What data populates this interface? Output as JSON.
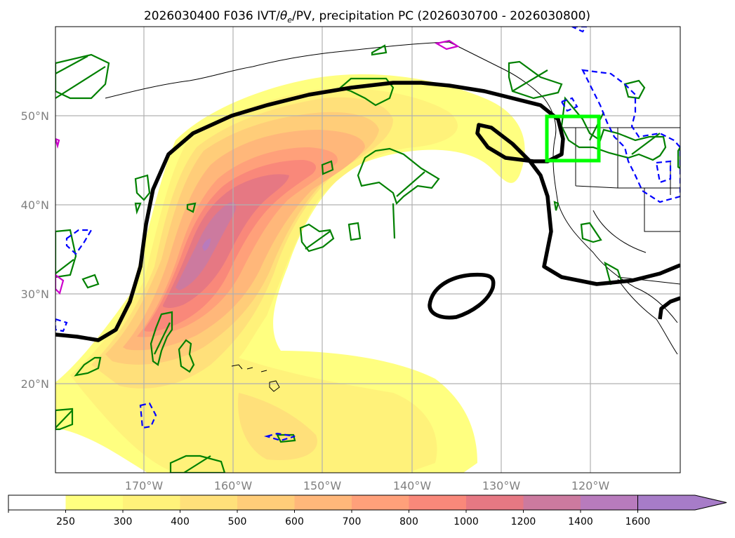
{
  "title": "2026030400 F036 IVT/",
  "title_theta": "θ",
  "title_sub": "e",
  "title_rest": "/PV, precipitation PC (2026030700 - 2026030800)",
  "map": {
    "lon_ticks": [
      "170°W",
      "160°W",
      "150°W",
      "140°W",
      "130°W",
      "120°W"
    ],
    "lat_ticks": [
      "50°N",
      "40°N",
      "30°N",
      "20°N"
    ]
  },
  "colorbar": {
    "ticks": [
      "250",
      "300",
      "400",
      "500",
      "600",
      "700",
      "800",
      "1000",
      "1200",
      "1400",
      "1600"
    ],
    "colors": [
      "#ffffff",
      "#ffff80",
      "#fff27a",
      "#ffe07a",
      "#ffcd79",
      "#ffb77a",
      "#ffa07a",
      "#f9887a",
      "#e67883",
      "#cc7a9f",
      "#b87bbd",
      "#a77cc8"
    ],
    "extend": "max"
  },
  "legend_colors": {
    "ivt_outline": "#000000",
    "precip_pos": "#008000",
    "precip_neg": "#0000ff",
    "pv": "#cc00cc",
    "region_box": "#00ff00"
  }
}
